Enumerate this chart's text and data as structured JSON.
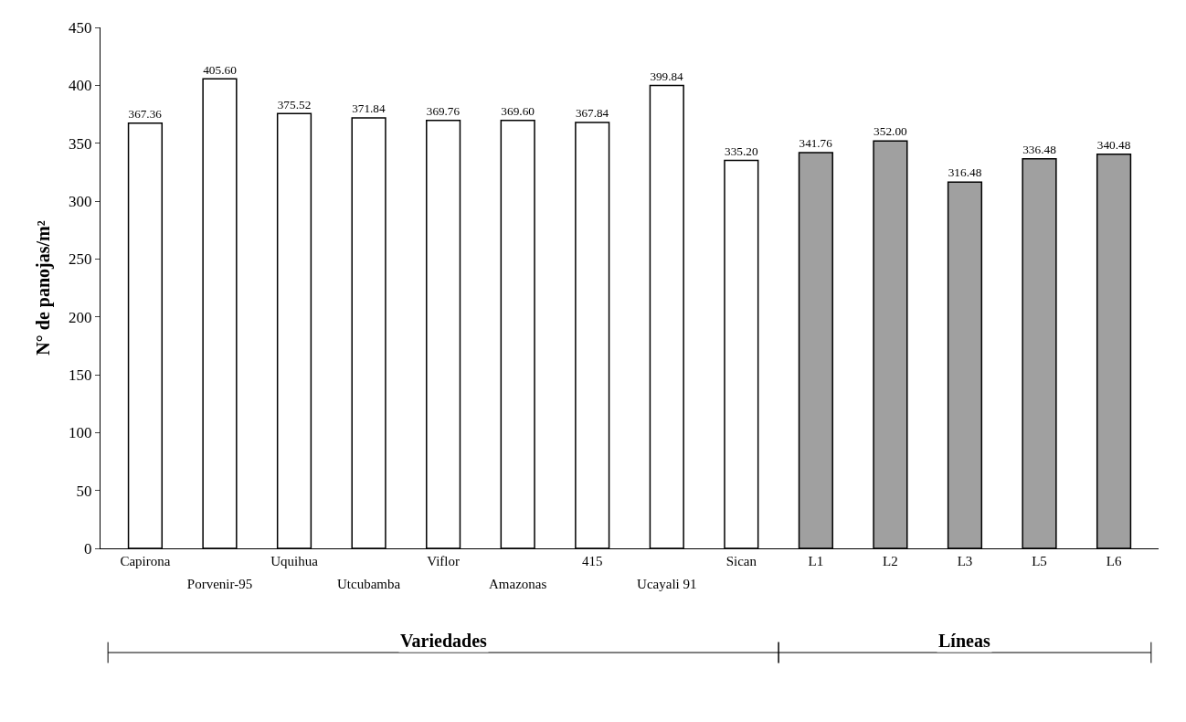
{
  "chart_data": {
    "type": "bar",
    "ylabel": "N° de panojas/m²",
    "categories": [
      "Capirona",
      "Porvenir-95",
      "Uquihua",
      "Utcubamba",
      "Viflor",
      "Amazonas",
      "415",
      "Ucayali 91",
      "Sican",
      "L1",
      "L2",
      "L3",
      "L5",
      "L6"
    ],
    "values": [
      367.36,
      405.6,
      375.52,
      371.84,
      369.76,
      369.6,
      367.84,
      399.84,
      335.2,
      341.76,
      352.0,
      316.48,
      336.48,
      340.48
    ],
    "value_labels": [
      "367.36",
      "405.60",
      "375.52",
      "371.84",
      "369.76",
      "369.60",
      "367.84",
      "399.84",
      "335.20",
      "341.76",
      "352.00",
      "316.48",
      "336.48",
      "340.48"
    ],
    "colors": [
      "#ffffff",
      "#ffffff",
      "#ffffff",
      "#ffffff",
      "#ffffff",
      "#ffffff",
      "#ffffff",
      "#ffffff",
      "#ffffff",
      "#a0a0a0",
      "#a0a0a0",
      "#a0a0a0",
      "#a0a0a0",
      "#a0a0a0"
    ],
    "ylim": [
      0,
      450
    ],
    "yticks": [
      0,
      50,
      100,
      150,
      200,
      250,
      300,
      350,
      400,
      450
    ],
    "legend": false,
    "annotations": [
      "Variedades",
      "Líneas"
    ]
  }
}
